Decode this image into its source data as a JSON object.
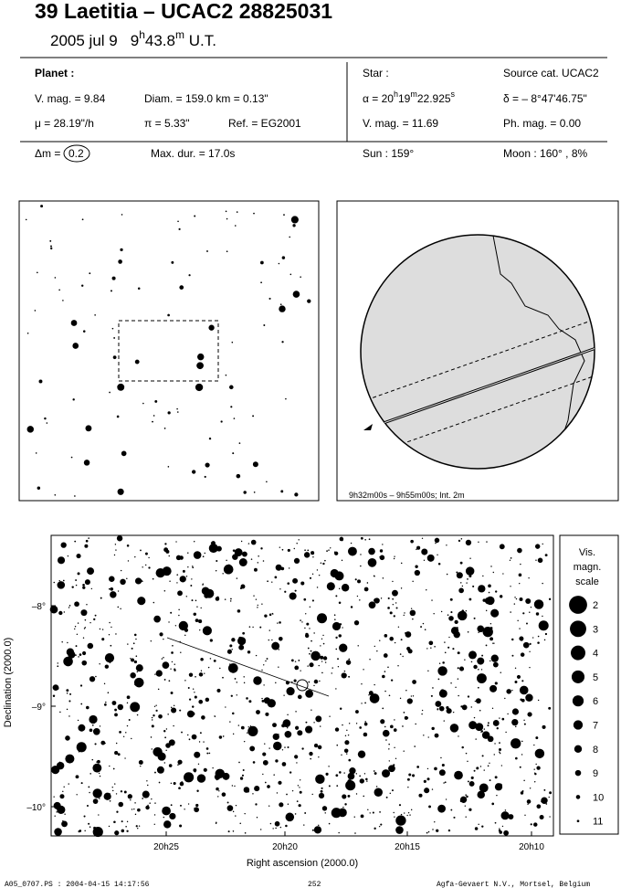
{
  "header": {
    "title": "39 Laetitia  –  UCAC2 28825031",
    "date": "2005 jul  9",
    "time_h": "9",
    "h_unit": "h",
    "time_m": "43.8",
    "m_unit": "m",
    "time_suffix": " U.T."
  },
  "planet": {
    "label": "Planet :",
    "vmag": "V. mag. =  9.84",
    "diam": "Diam. = 159.0 km = 0.13\"",
    "mu": "μ = 28.19\"/h",
    "parallax": "π =  5.33\"",
    "ref": "Ref. = EG2001"
  },
  "star": {
    "label": "Star :",
    "source": "Source cat.  UCAC2",
    "alpha_prefix": "α = 20",
    "alpha_h": "h",
    "alpha_min": "19",
    "alpha_m": "m",
    "alpha_sec": "22.925",
    "alpha_s": "s",
    "delta": "δ = – 8°47'46.75\"",
    "vmag": "V. mag. = 11.69",
    "phmag": "Ph. mag. =  0.00"
  },
  "summary": {
    "dm_label": "Δm = ",
    "dm_value": "0.2",
    "max_dur": "Max. dur. = 17.0s",
    "sun": "Sun : 159°",
    "moon": "Moon : 160° ,  8%"
  },
  "globe": {
    "caption": "9h32m00s –  9h55m00s; Int. 2m"
  },
  "star_chart": {
    "yticks": [
      "–8°",
      "–9°",
      "–10°"
    ],
    "xticks": [
      "20h25",
      "20h20",
      "20h15",
      "20h10"
    ],
    "x_label": "Right ascension (2000.0)",
    "y_label": "Declination (2000.0)",
    "legend_title": [
      "Vis.",
      "magn.",
      "scale"
    ],
    "legend_mags": [
      2,
      3,
      4,
      5,
      6,
      7,
      8,
      9,
      10,
      11
    ]
  },
  "footer": {
    "left": "A05_0707.PS : 2004-04-15 14:17:56",
    "center": "252",
    "right": "Agfa-Gevaert N.V., Mortsel, Belgium"
  }
}
